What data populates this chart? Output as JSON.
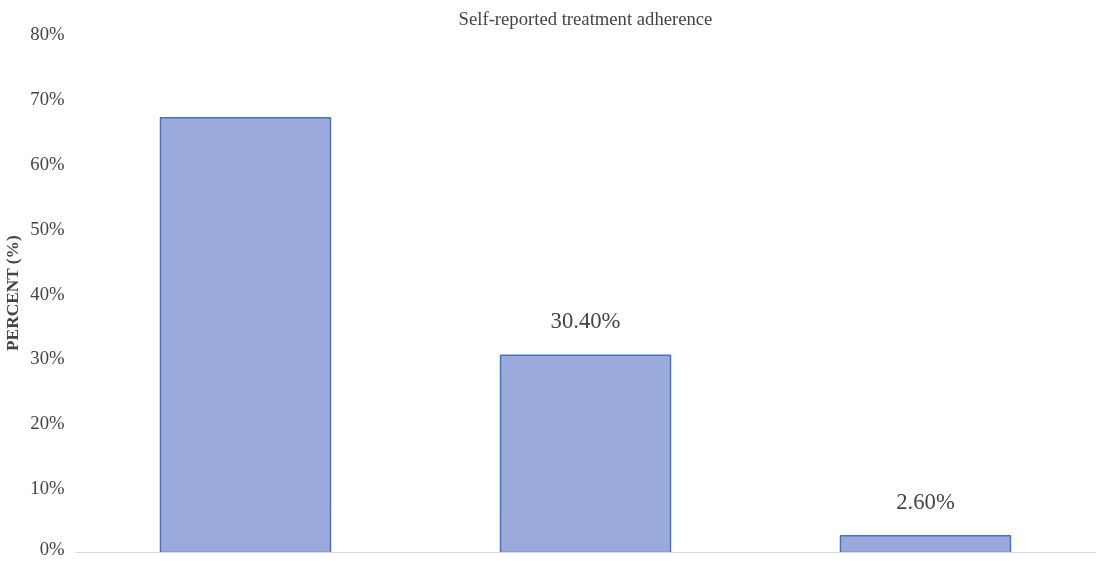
{
  "chart_data": {
    "type": "bar",
    "title": "Self-reported treatment adherence",
    "ylabel": "PERCENT (%)",
    "categories": [
      null,
      null,
      null
    ],
    "values": [
      67,
      30.4,
      2.6
    ],
    "value_labels": [
      null,
      "30.40%",
      "2.60%"
    ],
    "color": "#9aaadc",
    "ylim": [
      0,
      80
    ],
    "yticks": [
      {
        "value": 0,
        "label": "0%"
      },
      {
        "value": 10,
        "label": "10%"
      },
      {
        "value": 20,
        "label": "20%"
      },
      {
        "value": 30,
        "label": "30%"
      },
      {
        "value": 40,
        "label": "40%"
      },
      {
        "value": 50,
        "label": "50%"
      },
      {
        "value": 60,
        "label": "60%"
      },
      {
        "value": 70,
        "label": "70%"
      },
      {
        "value": 80,
        "label": "80%"
      }
    ],
    "grid": false
  }
}
